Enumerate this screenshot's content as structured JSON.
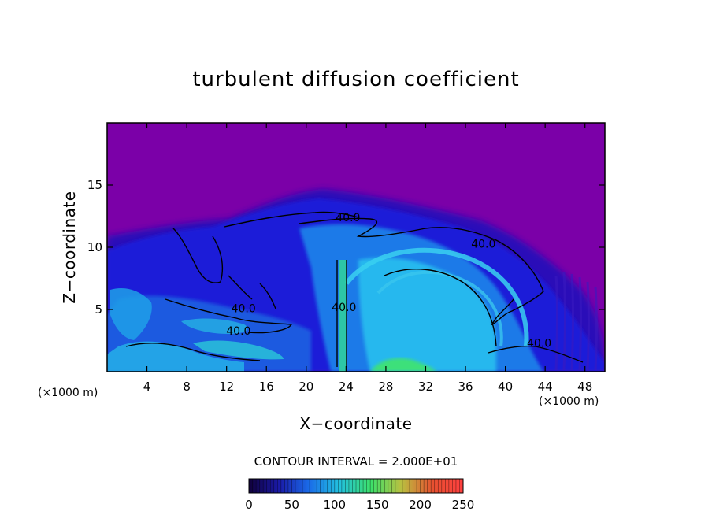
{
  "chart_data": {
    "type": "heatmap",
    "title": "turbulent diffusion coefficient",
    "xlabel": "X−coordinate",
    "ylabel": "Z−coordinate",
    "x_unit": "(×1000 m)",
    "xlim": [
      0,
      50
    ],
    "ylim": [
      0,
      20
    ],
    "xticks": [
      4,
      8,
      12,
      16,
      20,
      24,
      28,
      32,
      36,
      40,
      44,
      48
    ],
    "yticks": [
      5,
      10,
      15
    ],
    "contour_interval_text": "CONTOUR INTERVAL = 2.000E+01",
    "contour_interval": 20,
    "contour_labels": [
      {
        "text": "40.0",
        "x": 24.2,
        "z": 12.4
      },
      {
        "text": "40.0",
        "x": 37.8,
        "z": 10.3
      },
      {
        "text": "40.0",
        "x": 13.7,
        "z": 5.1
      },
      {
        "text": "40.0",
        "x": 13.2,
        "z": 3.3
      },
      {
        "text": "40.0",
        "x": 23.8,
        "z": 5.2
      },
      {
        "text": "40.0",
        "x": 43.4,
        "z": 2.3
      }
    ],
    "colorbar": {
      "min": 0,
      "max": 250,
      "tick_labels": [
        0,
        50,
        100,
        150,
        200,
        250
      ],
      "colors": [
        "#10003a",
        "#1a1aa8",
        "#1a6be8",
        "#22c0e0",
        "#3de06a",
        "#b8c040",
        "#e85030",
        "#ff4040"
      ]
    },
    "grid": false
  },
  "colors": {
    "background_field": "#7b00a8",
    "low_turbulence": "#1e1ad0",
    "medium_turbulence": "#1d8ef0",
    "high_turbulence": "#22d0c8",
    "peak_turbulence": "#3ee070"
  }
}
